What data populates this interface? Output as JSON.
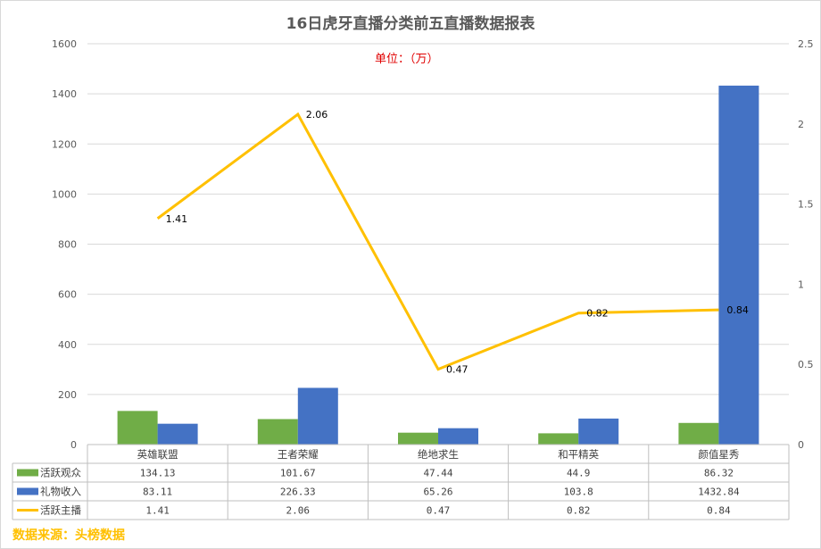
{
  "title": "16日虎牙直播分类前五直播数据报表",
  "unit_note": "单位：（万）",
  "source_note": "数据来源：头榜数据",
  "colors": {
    "audience": "#70ad47",
    "gift": "#4472c4",
    "streamers": "#ffc000",
    "unit_red": "#e00000"
  },
  "chart_data": {
    "type": "bar",
    "categories": [
      "英雄联盟",
      "王者荣耀",
      "绝地求生",
      "和平精英",
      "颜值星秀"
    ],
    "series": [
      {
        "name": "活跃观众",
        "type": "bar",
        "axis": "left",
        "values": [
          134.13,
          101.67,
          47.44,
          44.9,
          86.32
        ],
        "display": [
          "134.13",
          "101.67",
          "47.44",
          "44.9",
          "86.32"
        ]
      },
      {
        "name": "礼物收入",
        "type": "bar",
        "axis": "left",
        "values": [
          83.11,
          226.33,
          65.26,
          103.8,
          1432.84
        ],
        "display": [
          "83.11",
          "226.33",
          "65.26",
          "103.8",
          "1432.84"
        ]
      },
      {
        "name": "活跃主播",
        "type": "line",
        "axis": "right",
        "values": [
          1.41,
          2.06,
          0.47,
          0.82,
          0.84
        ],
        "display": [
          "1.41",
          "2.06",
          "0.47",
          "0.82",
          "0.84"
        ]
      }
    ],
    "ylim_left": [
      0,
      1600
    ],
    "yticks_left": [
      "0",
      "200",
      "400",
      "600",
      "800",
      "1000",
      "1200",
      "1400",
      "1600"
    ],
    "ylim_right": [
      0,
      2.5
    ],
    "yticks_right": [
      "0",
      "0.5",
      "1",
      "1.5",
      "2",
      "2.5"
    ],
    "grid": true,
    "legend": "data-table"
  }
}
